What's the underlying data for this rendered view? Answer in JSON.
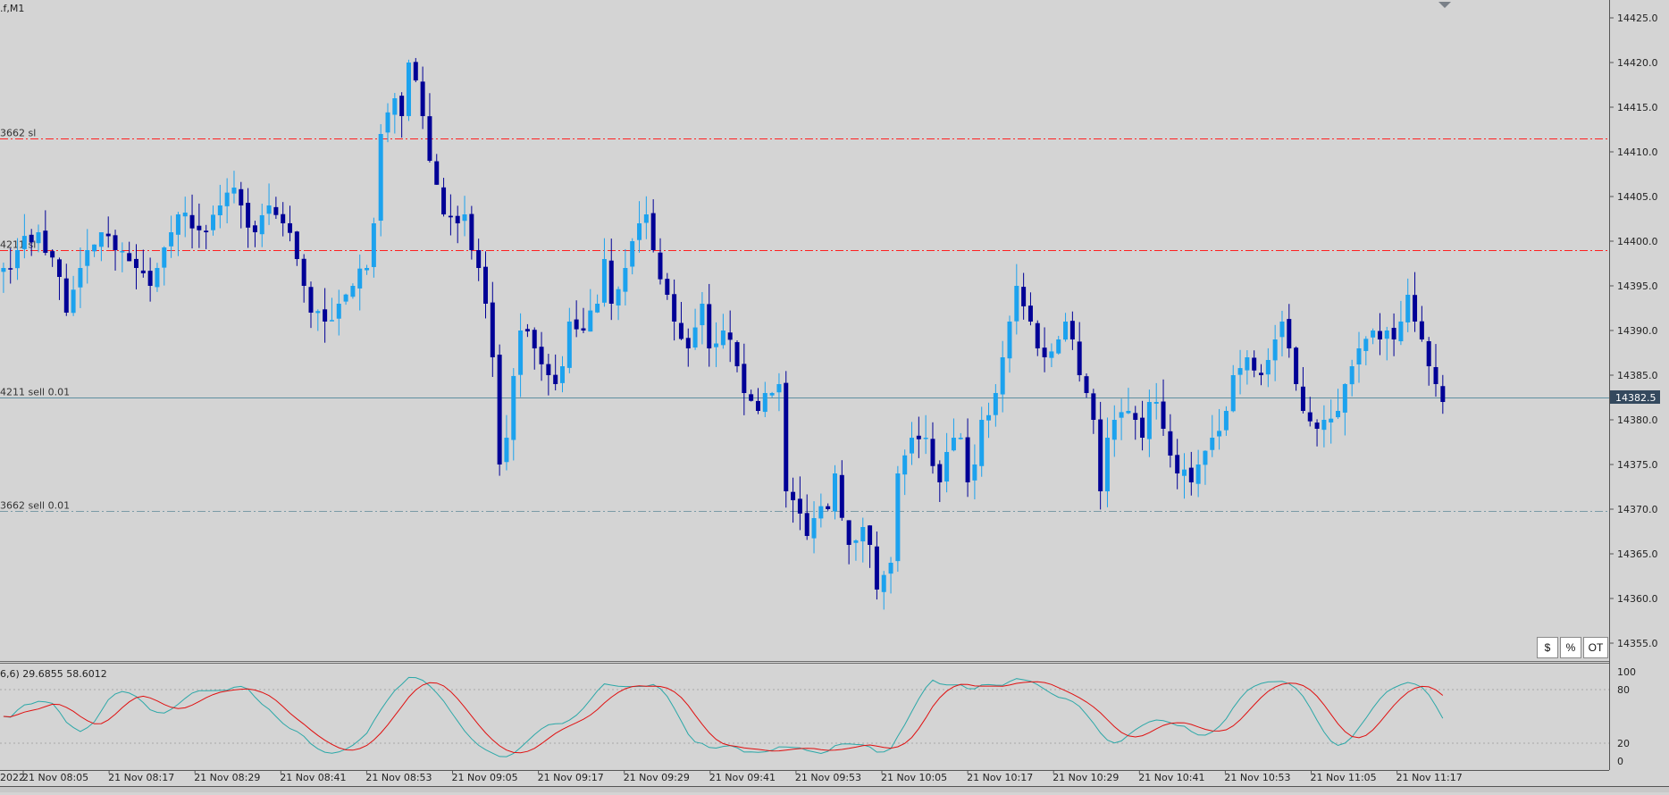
{
  "window": {
    "title": ".f,M1",
    "close_icon": "triangle-down-icon"
  },
  "main_chart": {
    "current_price": "14382.5",
    "price_axis_labels": [
      "14425.0",
      "14420.0",
      "14415.0",
      "14410.0",
      "14405.0",
      "14400.0",
      "14395.0",
      "14390.0",
      "14385.0",
      "14380.0",
      "14375.0",
      "14370.0",
      "14365.0",
      "14360.0",
      "14355.0"
    ],
    "lines": [
      {
        "label": "3662 sl",
        "price": 14411.5,
        "style": "dash-dot",
        "color": "#ff2020"
      },
      {
        "label": "4211 sl",
        "price": 14399.0,
        "style": "dash-dot",
        "color": "#ff2020"
      },
      {
        "label": "4211 sell 0.01",
        "price": 14382.5,
        "style": "solid",
        "color": "#5f8fa0"
      },
      {
        "label": "3662 sell 0.01",
        "price": 14369.8,
        "style": "dash-dot",
        "color": "#7a9aa6"
      }
    ],
    "colors": {
      "bull": "#1ca2ee",
      "bear": "#000096",
      "background": "#d4d4d4",
      "label_box": "#34495e"
    }
  },
  "buttons": [
    {
      "label": "$"
    },
    {
      "label": "%"
    },
    {
      "label": "OT"
    }
  ],
  "indicator": {
    "label": "6,6) 29.6855 58.6012",
    "axis_labels": [
      "100",
      "80",
      "20",
      "0"
    ],
    "main_color": "#2ca8a8",
    "signal_color": "#e01010"
  },
  "time_axis": {
    "labels": [
      "2022",
      "21 Nov 08:05",
      "21 Nov 08:17",
      "21 Nov 08:29",
      "21 Nov 08:41",
      "21 Nov 08:53",
      "21 Nov 09:05",
      "21 Nov 09:17",
      "21 Nov 09:29",
      "21 Nov 09:41",
      "21 Nov 09:53",
      "21 Nov 10:05",
      "21 Nov 10:17",
      "21 Nov 10:29",
      "21 Nov 10:41",
      "21 Nov 10:53",
      "21 Nov 11:05",
      "21 Nov 11:17"
    ]
  },
  "chart_data": {
    "type": "candlestick",
    "symbol_timeframe": ".f,M1",
    "ylim": [
      14352.5,
      14426.5
    ],
    "last_price": 14382.5,
    "price_ticks": [
      14425,
      14420,
      14415,
      14410,
      14405,
      14400,
      14395,
      14390,
      14385,
      14380,
      14375,
      14370,
      14365,
      14360,
      14355
    ],
    "x_tick_labels": [
      "2022",
      "21 Nov 08:05",
      "21 Nov 08:17",
      "21 Nov 08:29",
      "21 Nov 08:41",
      "21 Nov 08:53",
      "21 Nov 09:05",
      "21 Nov 09:17",
      "21 Nov 09:29",
      "21 Nov 09:41",
      "21 Nov 09:53",
      "21 Nov 10:05",
      "21 Nov 10:17",
      "21 Nov 10:29",
      "21 Nov 10:41",
      "21 Nov 10:53",
      "21 Nov 11:05",
      "21 Nov 11:17"
    ],
    "close_path": [
      [
        0,
        14397
      ],
      [
        2,
        14399
      ],
      [
        5,
        14401
      ],
      [
        8,
        14396
      ],
      [
        9,
        14392
      ],
      [
        11,
        14397
      ],
      [
        12,
        14399
      ],
      [
        14,
        14401
      ],
      [
        16,
        14399
      ],
      [
        19,
        14397
      ],
      [
        21,
        14395
      ],
      [
        22,
        14397
      ],
      [
        24,
        14401
      ],
      [
        25,
        14403
      ],
      [
        29,
        14401
      ],
      [
        31,
        14404
      ],
      [
        33,
        14406
      ],
      [
        34,
        14404
      ],
      [
        36,
        14401
      ],
      [
        38,
        14404
      ],
      [
        40,
        14402
      ],
      [
        42,
        14398
      ],
      [
        43,
        14395
      ],
      [
        44,
        14392
      ],
      [
        46,
        14391
      ],
      [
        48,
        14393
      ],
      [
        50,
        14395
      ],
      [
        52,
        14397
      ],
      [
        53,
        14402
      ],
      [
        54,
        14412
      ],
      [
        56,
        14416
      ],
      [
        57,
        14414
      ],
      [
        58,
        14420
      ],
      [
        59,
        14418
      ],
      [
        60,
        14414
      ],
      [
        61,
        14409
      ],
      [
        63,
        14403
      ],
      [
        65,
        14402
      ],
      [
        66,
        14403
      ],
      [
        67,
        14399
      ],
      [
        68,
        14397
      ],
      [
        69,
        14393
      ],
      [
        70,
        14387
      ],
      [
        71,
        14375
      ],
      [
        72,
        14378
      ],
      [
        74,
        14390
      ],
      [
        76,
        14388
      ],
      [
        78,
        14385
      ],
      [
        79,
        14384
      ],
      [
        80,
        14386
      ],
      [
        81,
        14391
      ],
      [
        83,
        14390
      ],
      [
        85,
        14393
      ],
      [
        86,
        14398
      ],
      [
        87,
        14393
      ],
      [
        89,
        14397
      ],
      [
        90,
        14400
      ],
      [
        91,
        14402
      ],
      [
        92,
        14403
      ],
      [
        93,
        14399
      ],
      [
        95,
        14394
      ],
      [
        96,
        14391
      ],
      [
        98,
        14388
      ],
      [
        100,
        14393
      ],
      [
        101,
        14388
      ],
      [
        103,
        14390
      ],
      [
        105,
        14386
      ],
      [
        106,
        14383
      ],
      [
        108,
        14381
      ],
      [
        109,
        14383
      ],
      [
        110,
        14383
      ],
      [
        111,
        14384
      ],
      [
        112,
        14372
      ],
      [
        113,
        14371
      ],
      [
        115,
        14367
      ],
      [
        116,
        14369
      ],
      [
        118,
        14370
      ],
      [
        119,
        14374
      ],
      [
        121,
        14366
      ],
      [
        123,
        14368
      ],
      [
        124,
        14366
      ],
      [
        125,
        14361
      ],
      [
        127,
        14364
      ],
      [
        128,
        14374
      ],
      [
        130,
        14378
      ],
      [
        132,
        14378
      ],
      [
        134,
        14373
      ],
      [
        136,
        14378
      ],
      [
        137,
        14378
      ],
      [
        138,
        14373
      ],
      [
        139,
        14375
      ],
      [
        140,
        14380
      ],
      [
        142,
        14383
      ],
      [
        143,
        14387
      ],
      [
        144,
        14391
      ],
      [
        145,
        14395
      ],
      [
        147,
        14391
      ],
      [
        148,
        14388
      ],
      [
        149,
        14387
      ],
      [
        151,
        14389
      ],
      [
        152,
        14391
      ],
      [
        153,
        14389
      ],
      [
        154,
        14385
      ],
      [
        155,
        14383
      ],
      [
        156,
        14380
      ],
      [
        157,
        14372
      ],
      [
        158,
        14378
      ],
      [
        159,
        14380
      ],
      [
        161,
        14381
      ],
      [
        162,
        14380
      ],
      [
        163,
        14378
      ],
      [
        164,
        14382
      ],
      [
        165,
        14382
      ],
      [
        166,
        14379
      ],
      [
        167,
        14376
      ],
      [
        168,
        14374
      ],
      [
        170,
        14373
      ],
      [
        171,
        14375
      ],
      [
        173,
        14378
      ],
      [
        175,
        14381
      ],
      [
        176,
        14385
      ],
      [
        178,
        14387
      ],
      [
        180,
        14385
      ],
      [
        182,
        14389
      ],
      [
        183,
        14391
      ],
      [
        184,
        14388
      ],
      [
        185,
        14384
      ],
      [
        186,
        14381
      ],
      [
        188,
        14379
      ],
      [
        189,
        14380
      ],
      [
        191,
        14381
      ],
      [
        192,
        14384
      ],
      [
        193,
        14386
      ],
      [
        194,
        14388
      ],
      [
        196,
        14390
      ],
      [
        197,
        14389
      ],
      [
        198,
        14390
      ],
      [
        199,
        14389
      ],
      [
        200,
        14391
      ],
      [
        201,
        14394
      ],
      [
        202,
        14391
      ],
      [
        203,
        14389
      ],
      [
        204,
        14386
      ],
      [
        205,
        14384
      ],
      [
        206,
        14382
      ]
    ],
    "stochastic": {
      "label": "6,6) 29.6855 58.6012",
      "main_value": 29.6855,
      "signal_value": 58.6012,
      "levels": [
        80,
        20
      ],
      "ylim": [
        0,
        100
      ]
    }
  }
}
